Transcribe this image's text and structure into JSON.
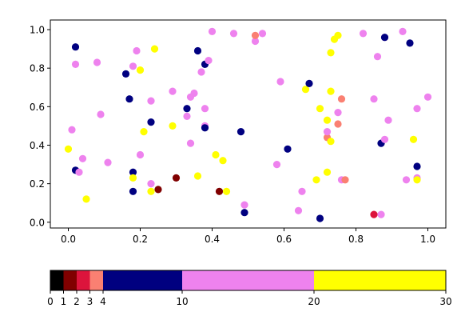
{
  "chart_data": [
    {
      "type": "scatter",
      "title": "",
      "xlabel": "",
      "ylabel": "",
      "xlim": [
        -0.05,
        1.05
      ],
      "ylim": [
        -0.03,
        1.05
      ],
      "x_ticks": [
        0.0,
        0.2,
        0.4,
        0.6,
        0.8,
        1.0
      ],
      "x_tick_labels": [
        "0.0",
        "0.2",
        "0.4",
        "0.6",
        "0.8",
        "1.0"
      ],
      "y_ticks": [
        0.0,
        0.2,
        0.4,
        0.6,
        0.8,
        1.0
      ],
      "y_tick_labels": [
        "0.0",
        "0.2",
        "0.4",
        "0.6",
        "0.8",
        "1.0"
      ],
      "grid": false,
      "points": [
        {
          "x": 0.02,
          "y": 0.91,
          "c": "#000080"
        },
        {
          "x": 0.02,
          "y": 0.82,
          "c": "#ee82ee"
        },
        {
          "x": 0.01,
          "y": 0.48,
          "c": "#ee82ee"
        },
        {
          "x": 0.0,
          "y": 0.38,
          "c": "#ffff00"
        },
        {
          "x": 0.02,
          "y": 0.27,
          "c": "#000080"
        },
        {
          "x": 0.03,
          "y": 0.26,
          "c": "#ee82ee"
        },
        {
          "x": 0.04,
          "y": 0.33,
          "c": "#ee82ee"
        },
        {
          "x": 0.05,
          "y": 0.12,
          "c": "#ffff00"
        },
        {
          "x": 0.08,
          "y": 0.83,
          "c": "#ee82ee"
        },
        {
          "x": 0.09,
          "y": 0.56,
          "c": "#ee82ee"
        },
        {
          "x": 0.11,
          "y": 0.31,
          "c": "#ee82ee"
        },
        {
          "x": 0.16,
          "y": 0.77,
          "c": "#000080"
        },
        {
          "x": 0.17,
          "y": 0.64,
          "c": "#000080"
        },
        {
          "x": 0.18,
          "y": 0.81,
          "c": "#ee82ee"
        },
        {
          "x": 0.18,
          "y": 0.26,
          "c": "#000080"
        },
        {
          "x": 0.18,
          "y": 0.23,
          "c": "#ffff00"
        },
        {
          "x": 0.18,
          "y": 0.16,
          "c": "#000080"
        },
        {
          "x": 0.19,
          "y": 0.89,
          "c": "#ee82ee"
        },
        {
          "x": 0.2,
          "y": 0.79,
          "c": "#ffff00"
        },
        {
          "x": 0.2,
          "y": 0.35,
          "c": "#ee82ee"
        },
        {
          "x": 0.21,
          "y": 0.47,
          "c": "#ffff00"
        },
        {
          "x": 0.23,
          "y": 0.63,
          "c": "#ee82ee"
        },
        {
          "x": 0.23,
          "y": 0.52,
          "c": "#000080"
        },
        {
          "x": 0.23,
          "y": 0.2,
          "c": "#ee82ee"
        },
        {
          "x": 0.23,
          "y": 0.16,
          "c": "#ffff00"
        },
        {
          "x": 0.24,
          "y": 0.9,
          "c": "#ffff00"
        },
        {
          "x": 0.25,
          "y": 0.17,
          "c": "#800000"
        },
        {
          "x": 0.29,
          "y": 0.68,
          "c": "#ee82ee"
        },
        {
          "x": 0.29,
          "y": 0.5,
          "c": "#ffff00"
        },
        {
          "x": 0.3,
          "y": 0.23,
          "c": "#800000"
        },
        {
          "x": 0.33,
          "y": 0.55,
          "c": "#ee82ee"
        },
        {
          "x": 0.33,
          "y": 0.59,
          "c": "#000080"
        },
        {
          "x": 0.34,
          "y": 0.65,
          "c": "#ee82ee"
        },
        {
          "x": 0.34,
          "y": 0.41,
          "c": "#ee82ee"
        },
        {
          "x": 0.35,
          "y": 0.67,
          "c": "#ee82ee"
        },
        {
          "x": 0.36,
          "y": 0.89,
          "c": "#000080"
        },
        {
          "x": 0.36,
          "y": 0.24,
          "c": "#ffff00"
        },
        {
          "x": 0.37,
          "y": 0.78,
          "c": "#ee82ee"
        },
        {
          "x": 0.38,
          "y": 0.82,
          "c": "#000080"
        },
        {
          "x": 0.38,
          "y": 0.59,
          "c": "#ee82ee"
        },
        {
          "x": 0.38,
          "y": 0.5,
          "c": "#ee82ee"
        },
        {
          "x": 0.38,
          "y": 0.49,
          "c": "#000080"
        },
        {
          "x": 0.39,
          "y": 0.84,
          "c": "#ee82ee"
        },
        {
          "x": 0.4,
          "y": 0.99,
          "c": "#ee82ee"
        },
        {
          "x": 0.41,
          "y": 0.35,
          "c": "#ffff00"
        },
        {
          "x": 0.42,
          "y": 0.16,
          "c": "#800000"
        },
        {
          "x": 0.43,
          "y": 0.32,
          "c": "#ffff00"
        },
        {
          "x": 0.44,
          "y": 0.16,
          "c": "#ffff00"
        },
        {
          "x": 0.46,
          "y": 0.98,
          "c": "#ee82ee"
        },
        {
          "x": 0.48,
          "y": 0.47,
          "c": "#000080"
        },
        {
          "x": 0.49,
          "y": 0.09,
          "c": "#ee82ee"
        },
        {
          "x": 0.49,
          "y": 0.05,
          "c": "#000080"
        },
        {
          "x": 0.52,
          "y": 0.94,
          "c": "#ee82ee"
        },
        {
          "x": 0.52,
          "y": 0.97,
          "c": "#fa8072"
        },
        {
          "x": 0.54,
          "y": 0.98,
          "c": "#ee82ee"
        },
        {
          "x": 0.58,
          "y": 0.3,
          "c": "#ee82ee"
        },
        {
          "x": 0.59,
          "y": 0.73,
          "c": "#ee82ee"
        },
        {
          "x": 0.61,
          "y": 0.38,
          "c": "#000080"
        },
        {
          "x": 0.64,
          "y": 0.06,
          "c": "#ee82ee"
        },
        {
          "x": 0.65,
          "y": 0.16,
          "c": "#ee82ee"
        },
        {
          "x": 0.66,
          "y": 0.69,
          "c": "#ffff00"
        },
        {
          "x": 0.67,
          "y": 0.72,
          "c": "#000080"
        },
        {
          "x": 0.69,
          "y": 0.22,
          "c": "#ffff00"
        },
        {
          "x": 0.7,
          "y": 0.02,
          "c": "#000080"
        },
        {
          "x": 0.7,
          "y": 0.59,
          "c": "#ffff00"
        },
        {
          "x": 0.72,
          "y": 0.26,
          "c": "#ffff00"
        },
        {
          "x": 0.72,
          "y": 0.44,
          "c": "#fa8072"
        },
        {
          "x": 0.72,
          "y": 0.47,
          "c": "#ee82ee"
        },
        {
          "x": 0.72,
          "y": 0.53,
          "c": "#ffff00"
        },
        {
          "x": 0.73,
          "y": 0.42,
          "c": "#ffff00"
        },
        {
          "x": 0.73,
          "y": 0.68,
          "c": "#ffff00"
        },
        {
          "x": 0.73,
          "y": 0.88,
          "c": "#ffff00"
        },
        {
          "x": 0.74,
          "y": 0.95,
          "c": "#ffff00"
        },
        {
          "x": 0.75,
          "y": 0.97,
          "c": "#ffff00"
        },
        {
          "x": 0.75,
          "y": 0.57,
          "c": "#ee82ee"
        },
        {
          "x": 0.75,
          "y": 0.51,
          "c": "#fa8072"
        },
        {
          "x": 0.76,
          "y": 0.64,
          "c": "#fa8072"
        },
        {
          "x": 0.76,
          "y": 0.22,
          "c": "#ee82ee"
        },
        {
          "x": 0.77,
          "y": 0.22,
          "c": "#fa8072"
        },
        {
          "x": 0.82,
          "y": 0.98,
          "c": "#ee82ee"
        },
        {
          "x": 0.85,
          "y": 0.04,
          "c": "#dc143c"
        },
        {
          "x": 0.85,
          "y": 0.64,
          "c": "#ee82ee"
        },
        {
          "x": 0.86,
          "y": 0.86,
          "c": "#ee82ee"
        },
        {
          "x": 0.87,
          "y": 0.41,
          "c": "#000080"
        },
        {
          "x": 0.87,
          "y": 0.04,
          "c": "#ee82ee"
        },
        {
          "x": 0.88,
          "y": 0.43,
          "c": "#ee82ee"
        },
        {
          "x": 0.88,
          "y": 0.96,
          "c": "#ee82ee"
        },
        {
          "x": 0.88,
          "y": 0.96,
          "c": "#000080"
        },
        {
          "x": 0.89,
          "y": 0.53,
          "c": "#ee82ee"
        },
        {
          "x": 0.93,
          "y": 0.99,
          "c": "#ee82ee"
        },
        {
          "x": 0.94,
          "y": 0.22,
          "c": "#ee82ee"
        },
        {
          "x": 0.95,
          "y": 0.93,
          "c": "#000080"
        },
        {
          "x": 0.96,
          "y": 0.43,
          "c": "#ffff00"
        },
        {
          "x": 0.97,
          "y": 0.29,
          "c": "#000080"
        },
        {
          "x": 0.97,
          "y": 0.23,
          "c": "#ee82ee"
        },
        {
          "x": 0.97,
          "y": 0.22,
          "c": "#ffff00"
        },
        {
          "x": 0.97,
          "y": 0.59,
          "c": "#ee82ee"
        },
        {
          "x": 1.0,
          "y": 0.65,
          "c": "#ee82ee"
        }
      ]
    },
    {
      "type": "colorbar",
      "boundaries": [
        0,
        1,
        2,
        3,
        4,
        10,
        20,
        30
      ],
      "tick_labels": [
        "0",
        "1",
        "2",
        "3",
        "4",
        "10",
        "20",
        "30"
      ],
      "colors": [
        "#000000",
        "#800000",
        "#dc143c",
        "#fa8072",
        "#000080",
        "#ee82ee",
        "#ffff00"
      ]
    }
  ]
}
